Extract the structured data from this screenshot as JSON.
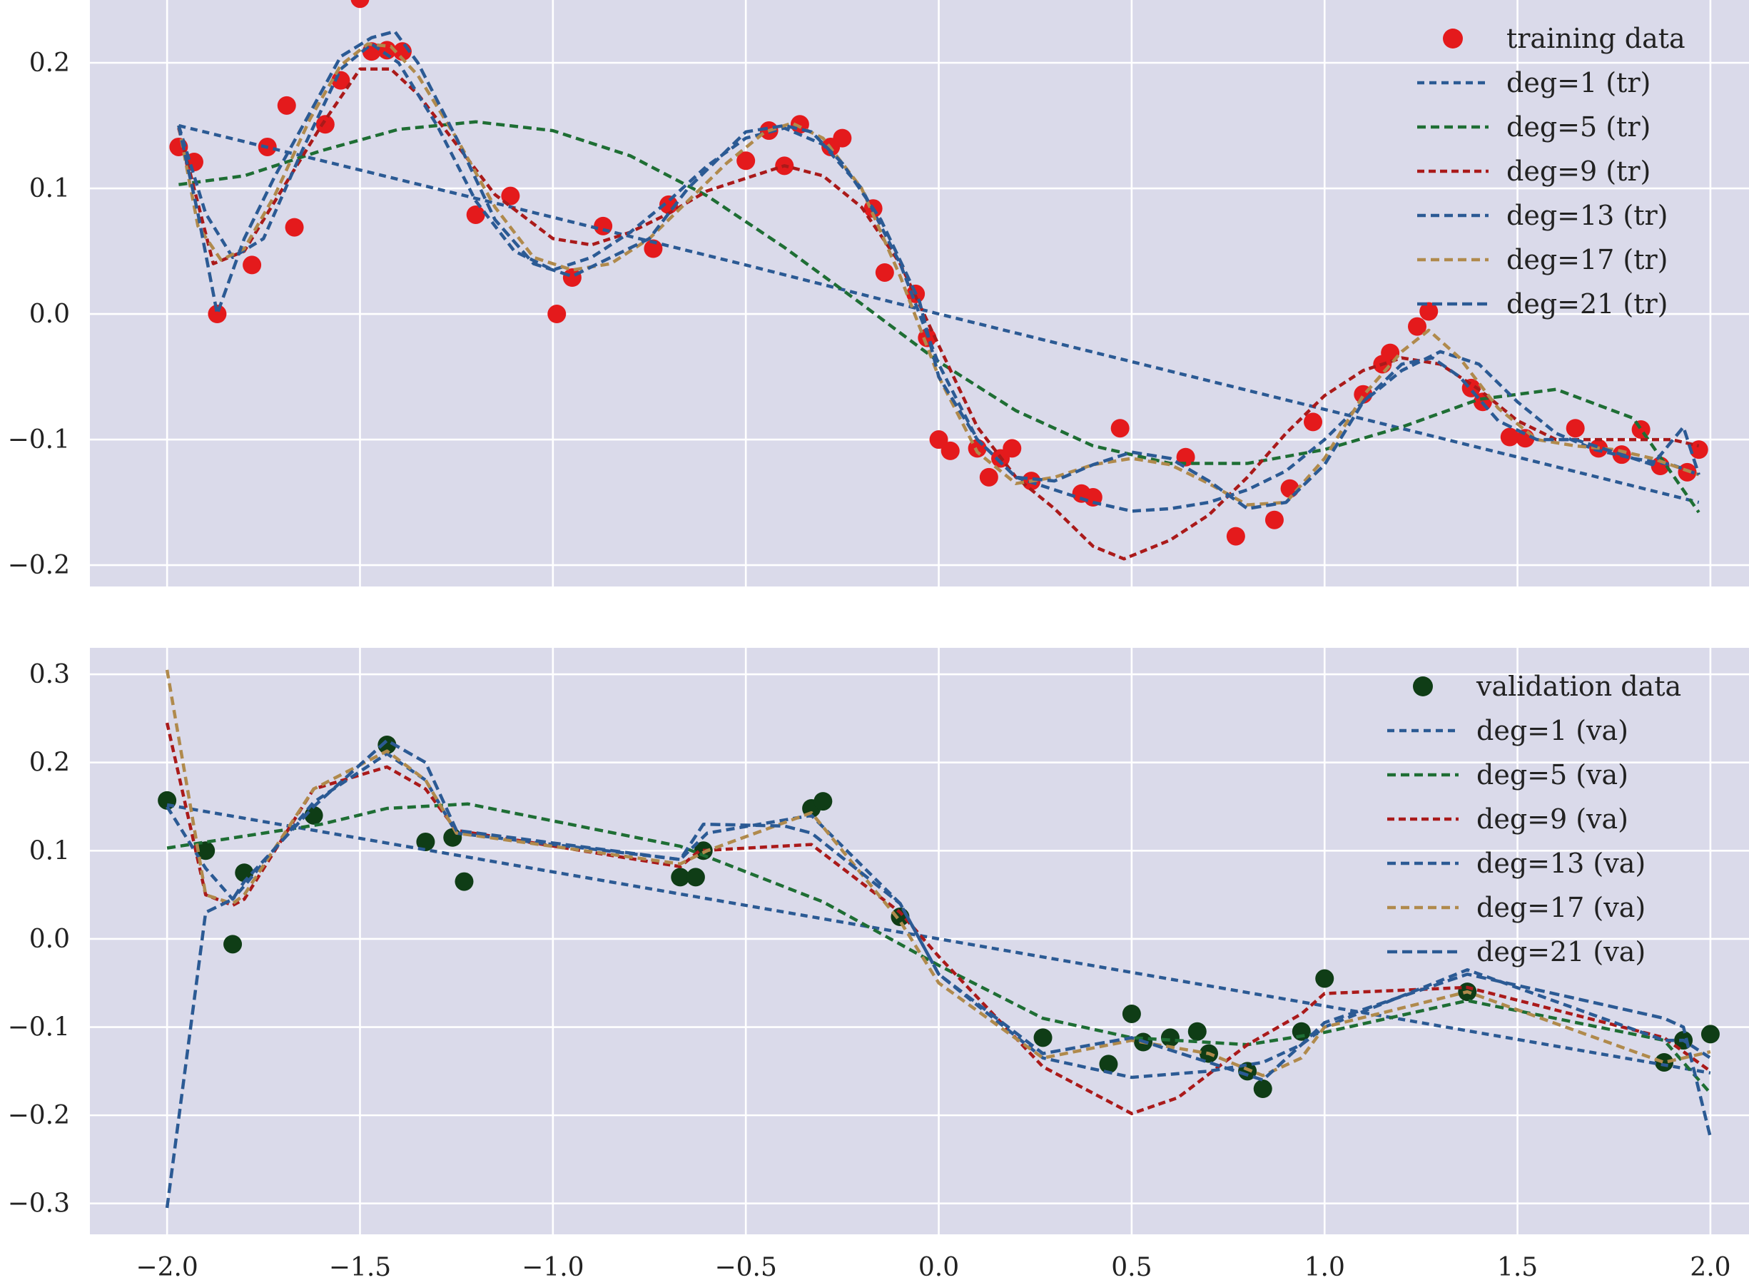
{
  "chart_data": [
    {
      "type": "line",
      "panel": "top",
      "xlim": [
        -2.2,
        2.1
      ],
      "ylim": [
        -0.217,
        0.25
      ],
      "grid": true,
      "legend_placement": "top-right",
      "xticks": [
        -2.0,
        -1.5,
        -1.0,
        -0.5,
        0.0,
        0.5,
        1.0,
        1.5,
        2.0
      ],
      "yticks": [
        -0.2,
        -0.1,
        0.0,
        0.1,
        0.2
      ],
      "ytick_labels": [
        "−0.2",
        "−0.1",
        "0.0",
        "0.1",
        "0.2"
      ],
      "points": {
        "name": "training data",
        "color": "#e41a1c",
        "x": [
          -1.97,
          -1.93,
          -1.87,
          -1.78,
          -1.74,
          -1.69,
          -1.67,
          -1.59,
          -1.55,
          -1.5,
          -1.47,
          -1.43,
          -1.39,
          -1.2,
          -1.11,
          -0.99,
          -0.95,
          -0.87,
          -0.74,
          -0.7,
          -0.5,
          -0.44,
          -0.4,
          -0.36,
          -0.28,
          -0.25,
          -0.17,
          -0.14,
          -0.06,
          -0.03,
          0.0,
          0.03,
          0.1,
          0.13,
          0.16,
          0.19,
          0.24,
          0.37,
          0.4,
          0.47,
          0.64,
          0.77,
          0.87,
          0.91,
          0.97,
          1.1,
          1.15,
          1.17,
          1.24,
          1.27,
          1.38,
          1.41,
          1.48,
          1.52,
          1.65,
          1.71,
          1.77,
          1.82,
          1.87,
          1.94,
          1.97
        ],
        "y": [
          0.133,
          0.121,
          0.0,
          0.039,
          0.133,
          0.166,
          0.069,
          0.151,
          0.186,
          0.251,
          0.209,
          0.21,
          0.209,
          0.079,
          0.094,
          0.0,
          0.029,
          0.07,
          0.052,
          0.087,
          0.122,
          0.146,
          0.118,
          0.151,
          0.133,
          0.14,
          0.084,
          0.033,
          0.016,
          -0.019,
          -0.1,
          -0.109,
          -0.107,
          -0.13,
          -0.115,
          -0.107,
          -0.133,
          -0.143,
          -0.146,
          -0.091,
          -0.114,
          -0.177,
          -0.164,
          -0.139,
          -0.086,
          -0.064,
          -0.04,
          -0.031,
          -0.01,
          0.002,
          -0.059,
          -0.07,
          -0.098,
          -0.099,
          -0.091,
          -0.107,
          -0.112,
          -0.092,
          -0.121,
          -0.126,
          -0.108
        ]
      },
      "series": [
        {
          "name": "deg=1 (tr)",
          "color": "#2b5a94",
          "dash": "10 7",
          "x": [
            -1.97,
            -1.0,
            -0.5,
            0.0,
            0.5,
            1.0,
            1.5,
            1.97
          ],
          "y": [
            0.15,
            0.077,
            0.039,
            0.0,
            -0.038,
            -0.076,
            -0.114,
            -0.15
          ]
        },
        {
          "name": "deg=5 (tr)",
          "color": "#1e6e34",
          "dash": "12 7",
          "x": [
            -1.97,
            -1.8,
            -1.6,
            -1.4,
            -1.2,
            -1.0,
            -0.8,
            -0.6,
            -0.4,
            -0.2,
            0.0,
            0.2,
            0.4,
            0.6,
            0.8,
            1.0,
            1.2,
            1.4,
            1.6,
            1.8,
            1.97
          ],
          "y": [
            0.103,
            0.11,
            0.13,
            0.147,
            0.153,
            0.146,
            0.126,
            0.094,
            0.053,
            0.008,
            -0.038,
            -0.077,
            -0.105,
            -0.119,
            -0.119,
            -0.108,
            -0.09,
            -0.068,
            -0.06,
            -0.083,
            -0.158
          ]
        },
        {
          "name": "deg=9 (tr)",
          "color": "#aa1a1a",
          "dash": "10 6",
          "x": [
            -1.97,
            -1.88,
            -1.8,
            -1.7,
            -1.6,
            -1.5,
            -1.42,
            -1.35,
            -1.25,
            -1.15,
            -1.0,
            -0.9,
            -0.8,
            -0.7,
            -0.6,
            -0.5,
            -0.4,
            -0.3,
            -0.2,
            -0.1,
            0.0,
            0.1,
            0.2,
            0.3,
            0.4,
            0.48,
            0.6,
            0.7,
            0.8,
            0.9,
            1.0,
            1.1,
            1.2,
            1.3,
            1.4,
            1.5,
            1.6,
            1.7,
            1.8,
            1.9,
            1.97
          ],
          "y": [
            0.148,
            0.04,
            0.05,
            0.1,
            0.15,
            0.195,
            0.195,
            0.175,
            0.135,
            0.095,
            0.06,
            0.055,
            0.065,
            0.08,
            0.098,
            0.108,
            0.118,
            0.11,
            0.085,
            0.04,
            -0.025,
            -0.09,
            -0.13,
            -0.155,
            -0.185,
            -0.195,
            -0.18,
            -0.16,
            -0.13,
            -0.095,
            -0.065,
            -0.045,
            -0.035,
            -0.04,
            -0.06,
            -0.085,
            -0.1,
            -0.1,
            -0.1,
            -0.1,
            -0.105
          ]
        },
        {
          "name": "deg=13 (tr)",
          "color": "#2b5a94",
          "dash": "12 7",
          "x": [
            -1.97,
            -1.9,
            -1.83,
            -1.75,
            -1.65,
            -1.55,
            -1.47,
            -1.4,
            -1.3,
            -1.2,
            -1.1,
            -1.0,
            -0.9,
            -0.8,
            -0.7,
            -0.6,
            -0.5,
            -0.4,
            -0.3,
            -0.2,
            -0.1,
            0.0,
            0.1,
            0.2,
            0.3,
            0.4,
            0.5,
            0.6,
            0.7,
            0.8,
            0.9,
            1.0,
            1.1,
            1.2,
            1.3,
            1.4,
            1.5,
            1.6,
            1.7,
            1.8,
            1.9,
            1.97
          ],
          "y": [
            0.15,
            0.08,
            0.045,
            0.06,
            0.13,
            0.195,
            0.215,
            0.2,
            0.15,
            0.09,
            0.05,
            0.035,
            0.045,
            0.065,
            0.09,
            0.118,
            0.14,
            0.148,
            0.135,
            0.1,
            0.04,
            -0.04,
            -0.1,
            -0.13,
            -0.14,
            -0.15,
            -0.157,
            -0.155,
            -0.15,
            -0.14,
            -0.125,
            -0.1,
            -0.07,
            -0.045,
            -0.03,
            -0.04,
            -0.07,
            -0.095,
            -0.108,
            -0.115,
            -0.12,
            -0.128
          ]
        },
        {
          "name": "deg=17 (tr)",
          "color": "#b08a4c",
          "dash": "12 7",
          "x": [
            -1.97,
            -1.92,
            -1.86,
            -1.8,
            -1.72,
            -1.63,
            -1.55,
            -1.48,
            -1.42,
            -1.35,
            -1.25,
            -1.15,
            -1.05,
            -0.95,
            -0.85,
            -0.75,
            -0.65,
            -0.55,
            -0.45,
            -0.38,
            -0.3,
            -0.2,
            -0.1,
            0.0,
            0.1,
            0.2,
            0.3,
            0.4,
            0.5,
            0.6,
            0.7,
            0.8,
            0.9,
            1.0,
            1.1,
            1.2,
            1.27,
            1.35,
            1.45,
            1.55,
            1.65,
            1.75,
            1.85,
            1.97
          ],
          "y": [
            0.15,
            0.07,
            0.043,
            0.052,
            0.095,
            0.155,
            0.198,
            0.215,
            0.213,
            0.19,
            0.14,
            0.085,
            0.045,
            0.035,
            0.04,
            0.06,
            0.09,
            0.12,
            0.145,
            0.152,
            0.14,
            0.1,
            0.03,
            -0.05,
            -0.11,
            -0.135,
            -0.13,
            -0.12,
            -0.115,
            -0.12,
            -0.135,
            -0.152,
            -0.15,
            -0.115,
            -0.065,
            -0.03,
            -0.013,
            -0.035,
            -0.075,
            -0.1,
            -0.105,
            -0.108,
            -0.115,
            -0.128
          ]
        },
        {
          "name": "deg=21 (tr)",
          "color": "#2b5a94",
          "dash": "14 7",
          "x": [
            -1.97,
            -1.92,
            -1.87,
            -1.8,
            -1.72,
            -1.63,
            -1.55,
            -1.47,
            -1.41,
            -1.35,
            -1.25,
            -1.15,
            -1.05,
            -0.95,
            -0.85,
            -0.75,
            -0.65,
            -0.5,
            -0.4,
            -0.33,
            -0.25,
            -0.15,
            -0.05,
            0.0,
            0.1,
            0.2,
            0.3,
            0.4,
            0.5,
            0.6,
            0.7,
            0.8,
            0.9,
            1.0,
            1.1,
            1.2,
            1.28,
            1.35,
            1.45,
            1.55,
            1.65,
            1.75,
            1.85,
            1.93,
            1.97
          ],
          "y": [
            0.15,
            0.08,
            0.0,
            0.06,
            0.11,
            0.16,
            0.205,
            0.22,
            0.225,
            0.2,
            0.14,
            0.075,
            0.04,
            0.03,
            0.045,
            0.06,
            0.1,
            0.145,
            0.15,
            0.145,
            0.12,
            0.075,
            0.01,
            -0.05,
            -0.1,
            -0.13,
            -0.133,
            -0.12,
            -0.11,
            -0.115,
            -0.133,
            -0.155,
            -0.15,
            -0.12,
            -0.07,
            -0.04,
            -0.035,
            -0.05,
            -0.085,
            -0.1,
            -0.1,
            -0.11,
            -0.12,
            -0.09,
            -0.128
          ]
        }
      ]
    },
    {
      "type": "line",
      "panel": "bottom",
      "xlim": [
        -2.2,
        2.1
      ],
      "ylim": [
        -0.335,
        0.33
      ],
      "grid": true,
      "legend_placement": "top-right",
      "xticks": [
        -2.0,
        -1.5,
        -1.0,
        -0.5,
        0.0,
        0.5,
        1.0,
        1.5,
        2.0
      ],
      "xtick_labels": [
        "−2.0",
        "−1.5",
        "−1.0",
        "−0.5",
        "0.0",
        "0.5",
        "1.0",
        "1.5",
        "2.0"
      ],
      "yticks": [
        -0.3,
        -0.2,
        -0.1,
        0.0,
        0.1,
        0.2,
        0.3
      ],
      "ytick_labels": [
        "−0.3",
        "−0.2",
        "−0.1",
        "0.0",
        "0.1",
        "0.2",
        "0.3"
      ],
      "points": {
        "name": "validation data",
        "color": "#0f3d16",
        "x": [
          -2.0,
          -1.9,
          -1.83,
          -1.8,
          -1.62,
          -1.43,
          -1.33,
          -1.26,
          -1.23,
          -0.67,
          -0.63,
          -0.61,
          -0.33,
          -0.3,
          -0.1,
          0.27,
          0.44,
          0.5,
          0.53,
          0.6,
          0.67,
          0.7,
          0.8,
          0.84,
          0.94,
          1.0,
          1.37,
          1.88,
          1.93,
          2.0
        ],
        "y": [
          0.157,
          0.1,
          -0.006,
          0.075,
          0.14,
          0.22,
          0.11,
          0.115,
          0.065,
          0.07,
          0.07,
          0.1,
          0.148,
          0.156,
          0.025,
          -0.112,
          -0.142,
          -0.085,
          -0.117,
          -0.112,
          -0.105,
          -0.13,
          -0.15,
          -0.17,
          -0.105,
          -0.045,
          -0.06,
          -0.14,
          -0.115,
          -0.108
        ]
      },
      "series": [
        {
          "name": "deg=1 (va)",
          "color": "#2b5a94",
          "dash": "10 7",
          "x": [
            -2.0,
            -1.0,
            0.0,
            1.0,
            2.0
          ],
          "y": [
            0.152,
            0.076,
            0.0,
            -0.076,
            -0.152
          ]
        },
        {
          "name": "deg=5 (va)",
          "color": "#1e6e34",
          "dash": "12 7",
          "x": [
            -2.0,
            -1.6,
            -1.43,
            -1.22,
            -0.67,
            -0.3,
            0.0,
            0.27,
            0.5,
            0.8,
            1.0,
            1.37,
            1.88,
            2.0
          ],
          "y": [
            0.103,
            0.13,
            0.148,
            0.153,
            0.105,
            0.042,
            -0.03,
            -0.09,
            -0.112,
            -0.12,
            -0.106,
            -0.07,
            -0.115,
            -0.175
          ]
        },
        {
          "name": "deg=9 (va)",
          "color": "#aa1a1a",
          "dash": "10 6",
          "x": [
            -2.0,
            -1.9,
            -1.83,
            -1.8,
            -1.62,
            -1.43,
            -1.33,
            -1.25,
            -0.67,
            -0.62,
            -0.33,
            -0.1,
            0.0,
            0.27,
            0.5,
            0.62,
            0.8,
            0.94,
            1.0,
            1.37,
            1.88,
            2.0
          ],
          "y": [
            0.245,
            0.05,
            0.038,
            0.045,
            0.17,
            0.195,
            0.17,
            0.123,
            0.082,
            0.1,
            0.107,
            0.03,
            -0.02,
            -0.145,
            -0.198,
            -0.18,
            -0.12,
            -0.085,
            -0.062,
            -0.055,
            -0.112,
            -0.15
          ]
        },
        {
          "name": "deg=13 (va)",
          "color": "#2b5a94",
          "dash": "12 7",
          "x": [
            -2.0,
            -1.9,
            -1.83,
            -1.8,
            -1.62,
            -1.43,
            -1.33,
            -1.25,
            -0.67,
            -0.6,
            -0.33,
            -0.1,
            0.0,
            0.27,
            0.5,
            0.7,
            0.84,
            0.94,
            1.0,
            1.37,
            1.88,
            1.93,
            2.0
          ],
          "y": [
            0.15,
            0.08,
            0.045,
            0.06,
            0.155,
            0.21,
            0.18,
            0.12,
            0.09,
            0.12,
            0.14,
            0.04,
            -0.04,
            -0.135,
            -0.157,
            -0.15,
            -0.14,
            -0.12,
            -0.1,
            -0.035,
            -0.115,
            -0.115,
            -0.135
          ]
        },
        {
          "name": "deg=17 (va)",
          "color": "#b08a4c",
          "dash": "12 7",
          "x": [
            -2.0,
            -1.9,
            -1.83,
            -1.8,
            -1.62,
            -1.43,
            -1.33,
            -1.25,
            -0.67,
            -0.6,
            -0.33,
            -0.1,
            0.0,
            0.27,
            0.5,
            0.7,
            0.84,
            0.94,
            1.0,
            1.37,
            1.88,
            2.0
          ],
          "y": [
            0.305,
            0.05,
            0.04,
            0.05,
            0.17,
            0.213,
            0.18,
            0.12,
            0.085,
            0.1,
            0.143,
            0.02,
            -0.05,
            -0.135,
            -0.115,
            -0.13,
            -0.155,
            -0.135,
            -0.1,
            -0.06,
            -0.14,
            -0.128
          ]
        },
        {
          "name": "deg=21 (va)",
          "color": "#2b5a94",
          "dash": "14 7",
          "x": [
            -2.0,
            -1.9,
            -1.83,
            -1.8,
            -1.62,
            -1.43,
            -1.33,
            -1.25,
            -0.67,
            -0.61,
            -0.4,
            -0.33,
            -0.1,
            0.0,
            0.27,
            0.5,
            0.7,
            0.84,
            0.94,
            1.0,
            1.37,
            1.88,
            1.93,
            2.0
          ],
          "y": [
            -0.305,
            0.03,
            0.045,
            0.065,
            0.15,
            0.225,
            0.2,
            0.123,
            0.09,
            0.13,
            0.128,
            0.12,
            0.04,
            -0.04,
            -0.13,
            -0.112,
            -0.14,
            -0.16,
            -0.12,
            -0.095,
            -0.04,
            -0.09,
            -0.1,
            -0.225
          ]
        }
      ]
    }
  ]
}
